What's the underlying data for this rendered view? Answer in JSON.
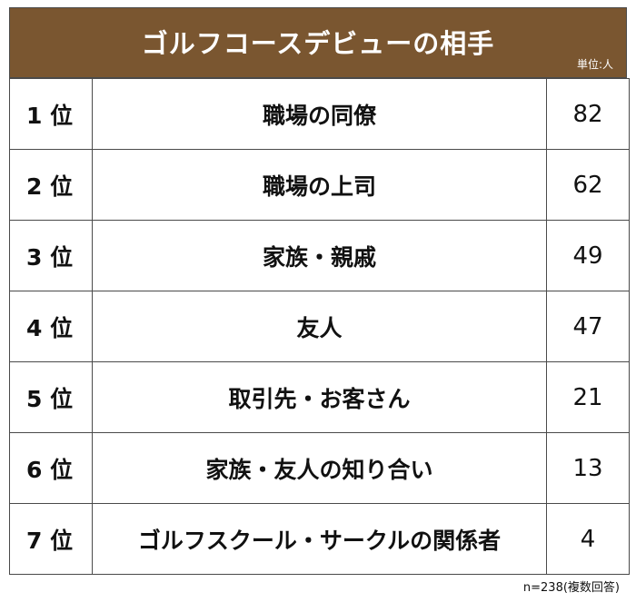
{
  "chart_data": {
    "type": "table",
    "title": "ゴルフコースデビューの相手",
    "unit": "単位:人",
    "rows": [
      {
        "rank": "1 位",
        "label": "職場の同僚",
        "value": 82
      },
      {
        "rank": "2 位",
        "label": "職場の上司",
        "value": 62
      },
      {
        "rank": "3 位",
        "label": "家族・親戚",
        "value": 49
      },
      {
        "rank": "4 位",
        "label": "友人",
        "value": 47
      },
      {
        "rank": "5 位",
        "label": "取引先・お客さん",
        "value": 21
      },
      {
        "rank": "6 位",
        "label": "家族・友人の知り合い",
        "value": 13
      },
      {
        "rank": "7 位",
        "label": "ゴルフスクール・サークルの関係者",
        "value": 4
      }
    ],
    "footnote": "n=238(複数回答)"
  },
  "colors": {
    "header_bg": "#7a5630",
    "header_text": "#ffffff",
    "border": "#4a4a4a"
  }
}
